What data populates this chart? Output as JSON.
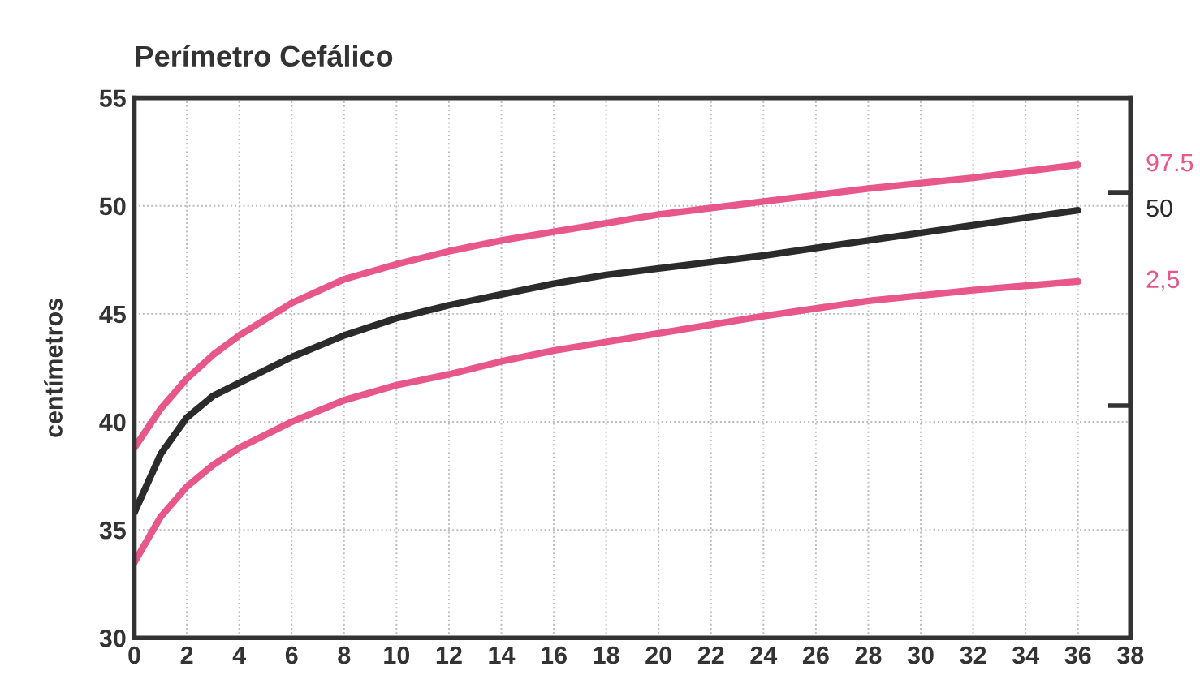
{
  "chart_data": {
    "type": "line",
    "title": "Perímetro Cefálico",
    "ylabel": "centímetros",
    "xlim": [
      0,
      38
    ],
    "xticks": [
      0,
      2,
      4,
      6,
      8,
      10,
      12,
      14,
      16,
      18,
      20,
      22,
      24,
      26,
      28,
      30,
      32,
      34,
      36,
      38
    ],
    "ylim": [
      30,
      55
    ],
    "yticks": [
      30,
      35,
      40,
      45,
      50,
      55
    ],
    "grid": true,
    "marker": "none",
    "line_style": "solid",
    "series": [
      {
        "name": "97.5",
        "color": "#e8578a",
        "x": [
          0,
          1,
          2,
          3,
          4,
          6,
          8,
          10,
          12,
          14,
          16,
          18,
          20,
          24,
          28,
          32,
          36
        ],
        "values": [
          38.8,
          40.6,
          42,
          43.1,
          44,
          45.5,
          46.6,
          47.3,
          47.9,
          48.4,
          48.8,
          49.2,
          49.6,
          50.2,
          50.8,
          51.3,
          51.9
        ]
      },
      {
        "name": "50",
        "color": "#2b2b2b",
        "x": [
          0,
          1,
          2,
          3,
          4,
          6,
          8,
          10,
          12,
          14,
          16,
          18,
          20,
          24,
          28,
          32,
          36
        ],
        "values": [
          35.8,
          38.5,
          40.2,
          41.2,
          41.8,
          43,
          44,
          44.8,
          45.4,
          45.9,
          46.4,
          46.8,
          47.1,
          47.7,
          48.4,
          49.1,
          49.8
        ]
      },
      {
        "name": "2,5",
        "color": "#e8578a",
        "x": [
          0,
          1,
          2,
          3,
          4,
          6,
          8,
          10,
          12,
          14,
          16,
          18,
          20,
          24,
          28,
          32,
          36
        ],
        "values": [
          33.5,
          35.6,
          37,
          38,
          38.8,
          40,
          41,
          41.7,
          42.2,
          42.8,
          43.3,
          43.7,
          44.1,
          44.9,
          45.6,
          46.1,
          46.5
        ]
      }
    ]
  }
}
